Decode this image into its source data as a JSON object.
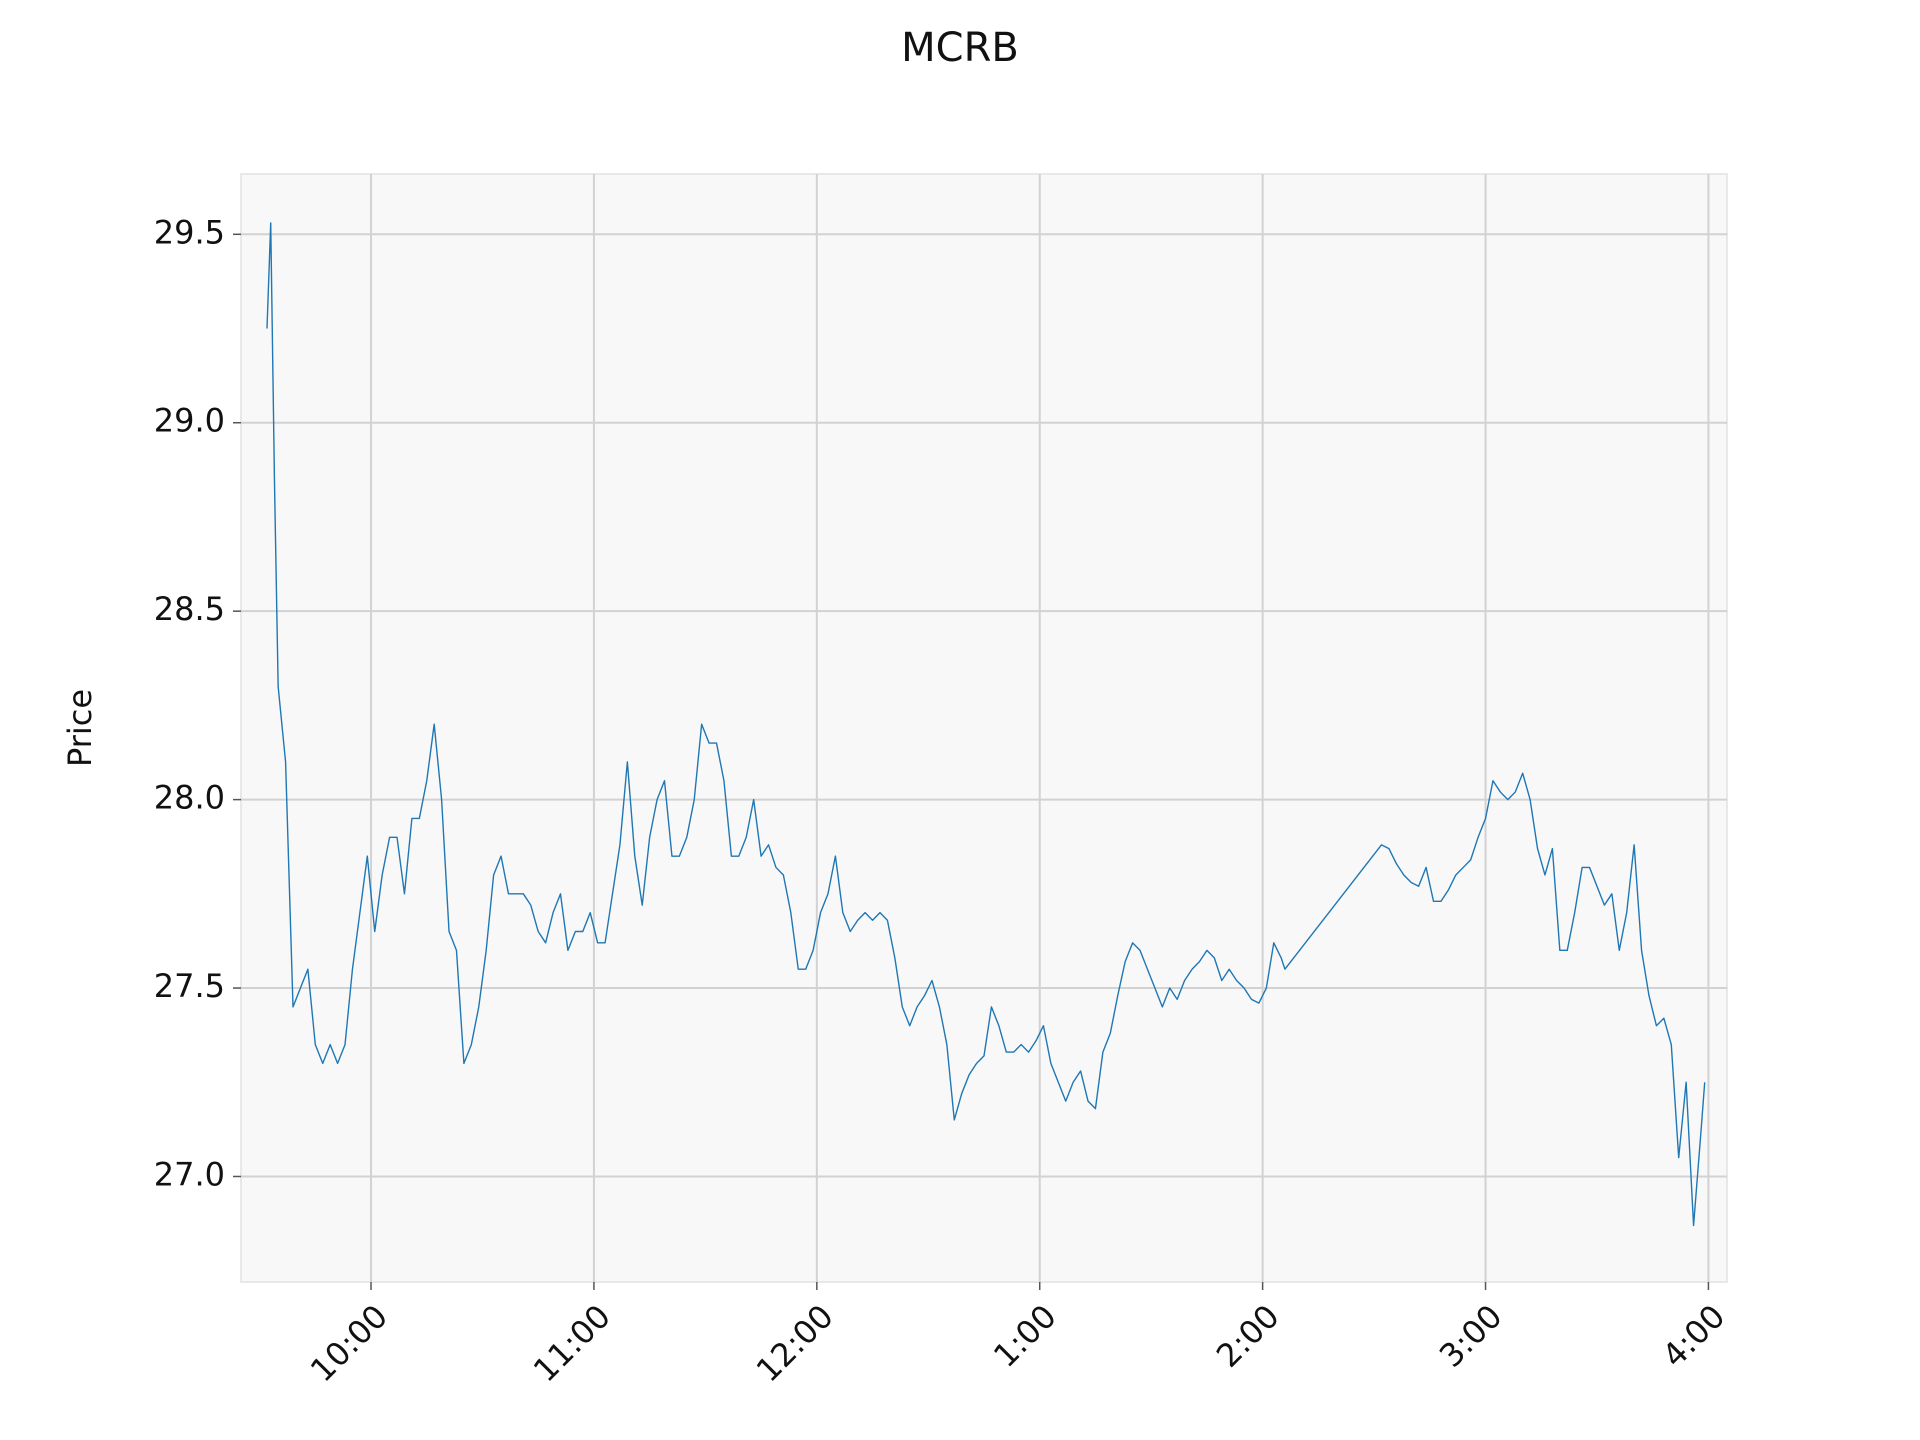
{
  "chart_data": {
    "type": "line",
    "title": "MCRB",
    "y_label": "Price",
    "color": "#1f77b4",
    "grid": true,
    "xlim": [
      "09:25",
      "16:05"
    ],
    "ylim": [
      26.72,
      29.66
    ],
    "xticks": [
      "10:00",
      "11:00",
      "12:00",
      {
        "value": "13:00",
        "label": "1:00"
      },
      {
        "value": "14:00",
        "label": "2:00"
      },
      {
        "value": "15:00",
        "label": "3:00"
      },
      {
        "value": "16:00",
        "label": "4:00"
      }
    ],
    "yticks": [
      {
        "value": 27,
        "label": "27.0"
      },
      27.5,
      {
        "value": 28,
        "label": "28.0"
      },
      28.5,
      {
        "value": 29,
        "label": "29.0"
      },
      29.5
    ],
    "x": [
      "09:32",
      "09:33",
      "09:34",
      "09:35",
      "09:37",
      "09:39",
      "09:41",
      "09:43",
      "09:45",
      "09:47",
      "09:49",
      "09:51",
      "09:53",
      "09:55",
      "09:57",
      "09:59",
      "10:01",
      "10:03",
      "10:05",
      "10:07",
      "10:09",
      "10:11",
      "10:13",
      "10:15",
      "10:17",
      "10:19",
      "10:21",
      "10:23",
      "10:25",
      "10:27",
      "10:29",
      "10:31",
      "10:33",
      "10:35",
      "10:37",
      "10:39",
      "10:41",
      "10:43",
      "10:45",
      "10:47",
      "10:49",
      "10:51",
      "10:53",
      "10:55",
      "10:57",
      "10:59",
      "11:01",
      "11:03",
      "11:05",
      "11:07",
      "11:09",
      "11:11",
      "11:13",
      "11:15",
      "11:17",
      "11:19",
      "11:21",
      "11:23",
      "11:25",
      "11:27",
      "11:29",
      "11:31",
      "11:33",
      "11:35",
      "11:37",
      "11:39",
      "11:41",
      "11:43",
      "11:45",
      "11:47",
      "11:49",
      "11:51",
      "11:53",
      "11:55",
      "11:57",
      "11:59",
      "12:01",
      "12:03",
      "12:05",
      "12:07",
      "12:09",
      "12:11",
      "12:13",
      "12:15",
      "12:17",
      "12:19",
      "12:21",
      "12:23",
      "12:25",
      "12:27",
      "12:29",
      "12:31",
      "12:33",
      "12:35",
      "12:37",
      "12:39",
      "12:41",
      "12:43",
      "12:45",
      "12:47",
      "12:49",
      "12:51",
      "12:53",
      "12:55",
      "12:57",
      "12:59",
      "13:01",
      "13:03",
      "13:05",
      "13:07",
      "13:09",
      "13:11",
      "13:13",
      "13:15",
      "13:17",
      "13:19",
      "13:21",
      "13:23",
      "13:25",
      "13:27",
      "13:29",
      "13:31",
      "13:33",
      "13:35",
      "13:37",
      "13:39",
      "13:41",
      "13:43",
      "13:45",
      "13:47",
      "13:49",
      "13:51",
      "13:53",
      "13:55",
      "13:57",
      "13:59",
      "14:01",
      "14:03",
      "14:05",
      "14:06",
      "14:32",
      "14:34",
      "14:36",
      "14:38",
      "14:40",
      "14:42",
      "14:44",
      "14:46",
      "14:48",
      "14:50",
      "14:52",
      "14:54",
      "14:56",
      "14:58",
      "15:00",
      "15:02",
      "15:04",
      "15:06",
      "15:08",
      "15:10",
      "15:12",
      "15:14",
      "15:16",
      "15:18",
      "15:20",
      "15:22",
      "15:24",
      "15:26",
      "15:28",
      "15:30",
      "15:32",
      "15:34",
      "15:36",
      "15:38",
      "15:40",
      "15:42",
      "15:44",
      "15:46",
      "15:48",
      "15:50",
      "15:52",
      "15:54",
      "15:56",
      "15:58",
      "15:59"
    ],
    "values": [
      29.25,
      29.53,
      28.85,
      28.3,
      28.1,
      27.45,
      27.5,
      27.55,
      27.35,
      27.3,
      27.35,
      27.3,
      27.35,
      27.55,
      27.7,
      27.85,
      27.65,
      27.8,
      27.9,
      27.9,
      27.75,
      27.95,
      27.95,
      28.05,
      28.2,
      28.0,
      27.65,
      27.6,
      27.3,
      27.35,
      27.45,
      27.6,
      27.8,
      27.85,
      27.75,
      27.75,
      27.75,
      27.72,
      27.65,
      27.62,
      27.7,
      27.75,
      27.6,
      27.65,
      27.65,
      27.7,
      27.62,
      27.62,
      27.75,
      27.88,
      28.1,
      27.85,
      27.72,
      27.9,
      28.0,
      28.05,
      27.85,
      27.85,
      27.9,
      28.0,
      28.2,
      28.15,
      28.15,
      28.05,
      27.85,
      27.85,
      27.9,
      28.0,
      27.85,
      27.88,
      27.82,
      27.8,
      27.7,
      27.55,
      27.55,
      27.6,
      27.7,
      27.75,
      27.85,
      27.7,
      27.65,
      27.68,
      27.7,
      27.68,
      27.7,
      27.68,
      27.58,
      27.45,
      27.4,
      27.45,
      27.48,
      27.52,
      27.45,
      27.35,
      27.15,
      27.22,
      27.27,
      27.3,
      27.32,
      27.45,
      27.4,
      27.33,
      27.33,
      27.35,
      27.33,
      27.36,
      27.4,
      27.3,
      27.25,
      27.2,
      27.25,
      27.28,
      27.2,
      27.18,
      27.33,
      27.38,
      27.48,
      27.57,
      27.62,
      27.6,
      27.55,
      27.5,
      27.45,
      27.5,
      27.47,
      27.52,
      27.55,
      27.57,
      27.6,
      27.58,
      27.52,
      27.55,
      27.52,
      27.5,
      27.47,
      27.46,
      27.5,
      27.62,
      27.58,
      27.55,
      27.88,
      27.87,
      27.83,
      27.8,
      27.78,
      27.77,
      27.82,
      27.73,
      27.73,
      27.76,
      27.8,
      27.82,
      27.84,
      27.9,
      27.95,
      28.05,
      28.02,
      28.0,
      28.02,
      28.07,
      28.0,
      27.87,
      27.8,
      27.87,
      27.6,
      27.6,
      27.7,
      27.82,
      27.82,
      27.77,
      27.72,
      27.75,
      27.6,
      27.7,
      27.88,
      27.6,
      27.48,
      27.4,
      27.42,
      27.35,
      27.05,
      27.25,
      26.87,
      27.12,
      27.25
    ]
  }
}
